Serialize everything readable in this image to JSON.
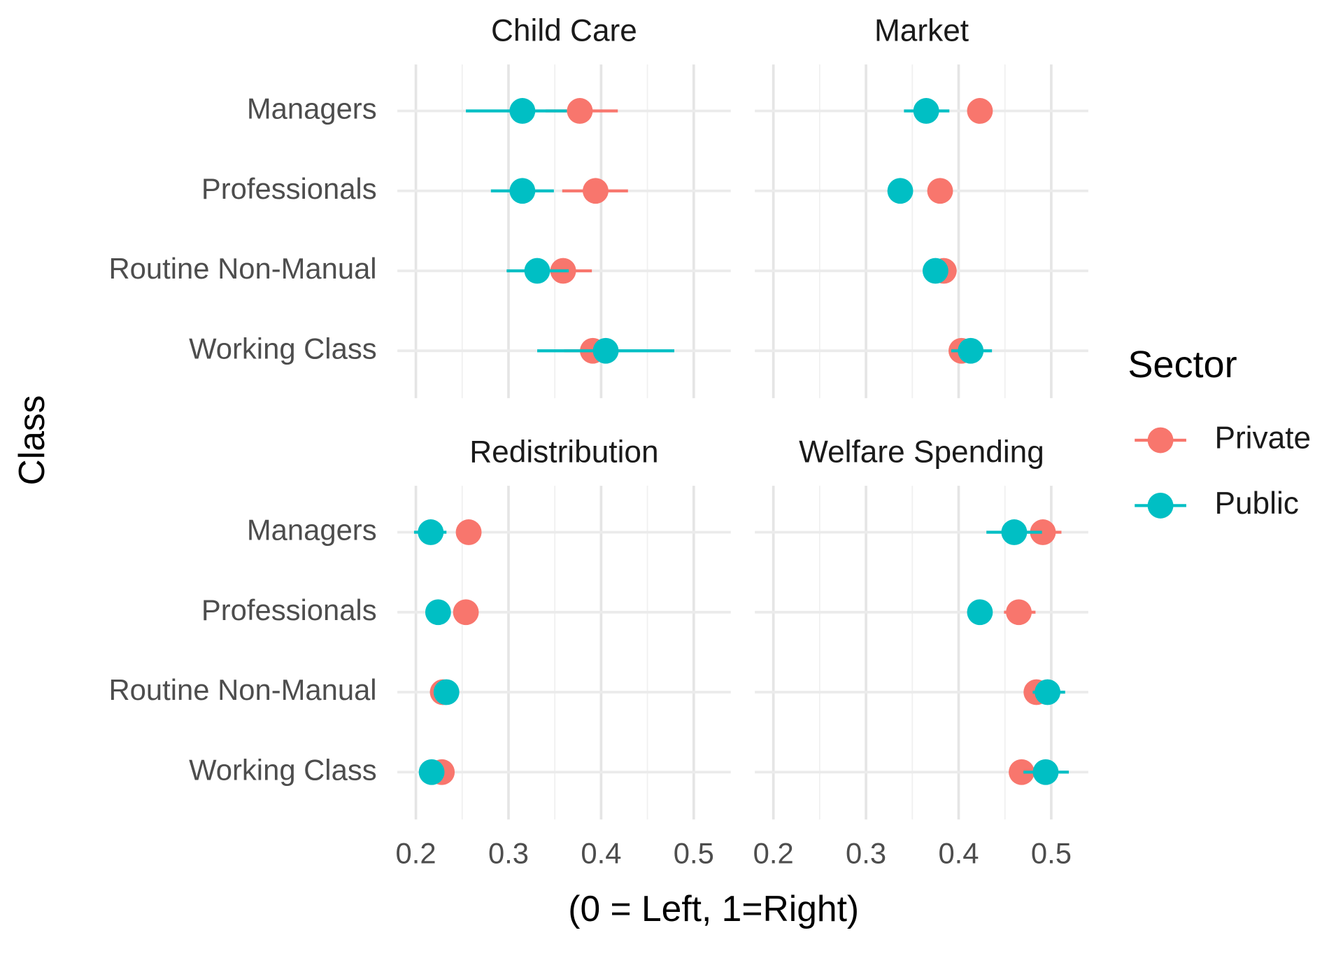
{
  "chart_data": {
    "type": "dotwhisker",
    "x_label": "(0 = Left, 1=Right)",
    "y_label": "Class",
    "legend_title": "Sector",
    "legend_position": "right",
    "grid": true,
    "categories": [
      "Managers",
      "Professionals",
      "Routine Non-Manual",
      "Working Class"
    ],
    "xlim": [
      0.18,
      0.54
    ],
    "xticks": [
      0.2,
      0.3,
      0.4,
      0.5
    ],
    "xminor": [
      0.25,
      0.35,
      0.45
    ],
    "series": [
      {
        "name": "Private",
        "color": "#f8766d"
      },
      {
        "name": "Public",
        "color": "#00bfc4"
      }
    ],
    "facets": [
      {
        "title": "Child Care",
        "series": [
          {
            "values": [
              0.377,
              0.394,
              0.359,
              0.391
            ],
            "lower": [
              0.34,
              0.358,
              0.33,
              0.36
            ],
            "upper": [
              0.418,
              0.429,
              0.39,
              0.42
            ]
          },
          {
            "values": [
              0.315,
              0.315,
              0.331,
              0.405
            ],
            "lower": [
              0.254,
              0.281,
              0.298,
              0.331
            ],
            "upper": [
              0.363,
              0.349,
              0.365,
              0.479
            ]
          }
        ]
      },
      {
        "title": "Market",
        "series": [
          {
            "values": [
              0.423,
              0.38,
              0.384,
              0.403
            ],
            "lower": [
              0.41,
              0.37,
              0.374,
              0.393
            ],
            "upper": [
              0.436,
              0.39,
              0.394,
              0.413
            ]
          },
          {
            "values": [
              0.365,
              0.337,
              0.375,
              0.413
            ],
            "lower": [
              0.341,
              0.327,
              0.362,
              0.392
            ],
            "upper": [
              0.39,
              0.347,
              0.387,
              0.436
            ]
          }
        ]
      },
      {
        "title": "Redistribution",
        "series": [
          {
            "values": [
              0.257,
              0.254,
              0.229,
              0.228
            ],
            "lower": [
              0.247,
              0.244,
              0.219,
              0.218
            ],
            "upper": [
              0.267,
              0.264,
              0.239,
              0.238
            ]
          },
          {
            "values": [
              0.216,
              0.224,
              0.233,
              0.217
            ],
            "lower": [
              0.198,
              0.214,
              0.223,
              0.207
            ],
            "upper": [
              0.233,
              0.234,
              0.243,
              0.227
            ]
          }
        ]
      },
      {
        "title": "Welfare Spending",
        "series": [
          {
            "values": [
              0.491,
              0.465,
              0.484,
              0.468
            ],
            "lower": [
              0.47,
              0.449,
              0.472,
              0.456
            ],
            "upper": [
              0.511,
              0.483,
              0.496,
              0.48
            ]
          },
          {
            "values": [
              0.46,
              0.423,
              0.496,
              0.494
            ],
            "lower": [
              0.43,
              0.41,
              0.48,
              0.47
            ],
            "upper": [
              0.49,
              0.436,
              0.515,
              0.519
            ]
          }
        ]
      }
    ]
  }
}
